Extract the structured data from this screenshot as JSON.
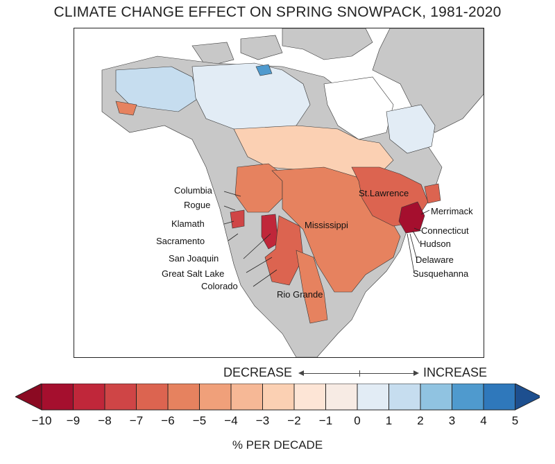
{
  "title": "CLIMATE CHANGE EFFECT ON SPRING SNOWPACK, 1981-2020",
  "legend": {
    "decrease_label": "DECREASE",
    "increase_label": "INCREASE",
    "unit_label": "% PER DECADE",
    "ticks": [
      "−10",
      "−9",
      "−8",
      "−7",
      "−6",
      "−5",
      "−4",
      "−3",
      "−2",
      "−1",
      "0",
      "1",
      "2",
      "3",
      "4",
      "5"
    ],
    "colors": [
      "#a50f2e",
      "#c0273a",
      "#cf4546",
      "#dc6450",
      "#e6825f",
      "#f0a07a",
      "#f6b896",
      "#fbd0b3",
      "#fde5d6",
      "#f7ebe4",
      "#e2ecf5",
      "#c6ddef",
      "#90c3e1",
      "#4f9ace",
      "#2f78bb"
    ],
    "low_arrow_color": "#8b0a22",
    "high_arrow_color": "#1d4f8f"
  },
  "basins": {
    "columbia": "Columbia",
    "rogue": "Rogue",
    "klamath": "Klamath",
    "sacramento": "Sacramento",
    "san_joaquin": "San Joaquin",
    "great_salt_lake": "Great Salt Lake",
    "colorado": "Colorado",
    "rio_grande": "Rio Grande",
    "mississippi": "Mississippi",
    "st_lawrence": "St.Lawrence",
    "merrimack": "Merrimack",
    "connecticut": "Connecticut",
    "hudson": "Hudson",
    "delaware": "Delaware",
    "susquehanna": "Susquehanna"
  },
  "basin_colors": {
    "land": "#c8c8c8",
    "arctic_light_blue": "#c6ddef",
    "arctic_very_light": "#e2ecf5",
    "boreal_pale": "#fbd0b3",
    "columbia": "#e6825f",
    "klamath": "#cf4546",
    "great_salt_lake": "#c0273a",
    "colorado": "#dc6450",
    "rio_grande": "#e6825f",
    "mississippi": "#e6825f",
    "st_lawrence": "#dc6450",
    "new_england": "#a50f2e",
    "dark_blue_patch": "#4f9ace"
  }
}
